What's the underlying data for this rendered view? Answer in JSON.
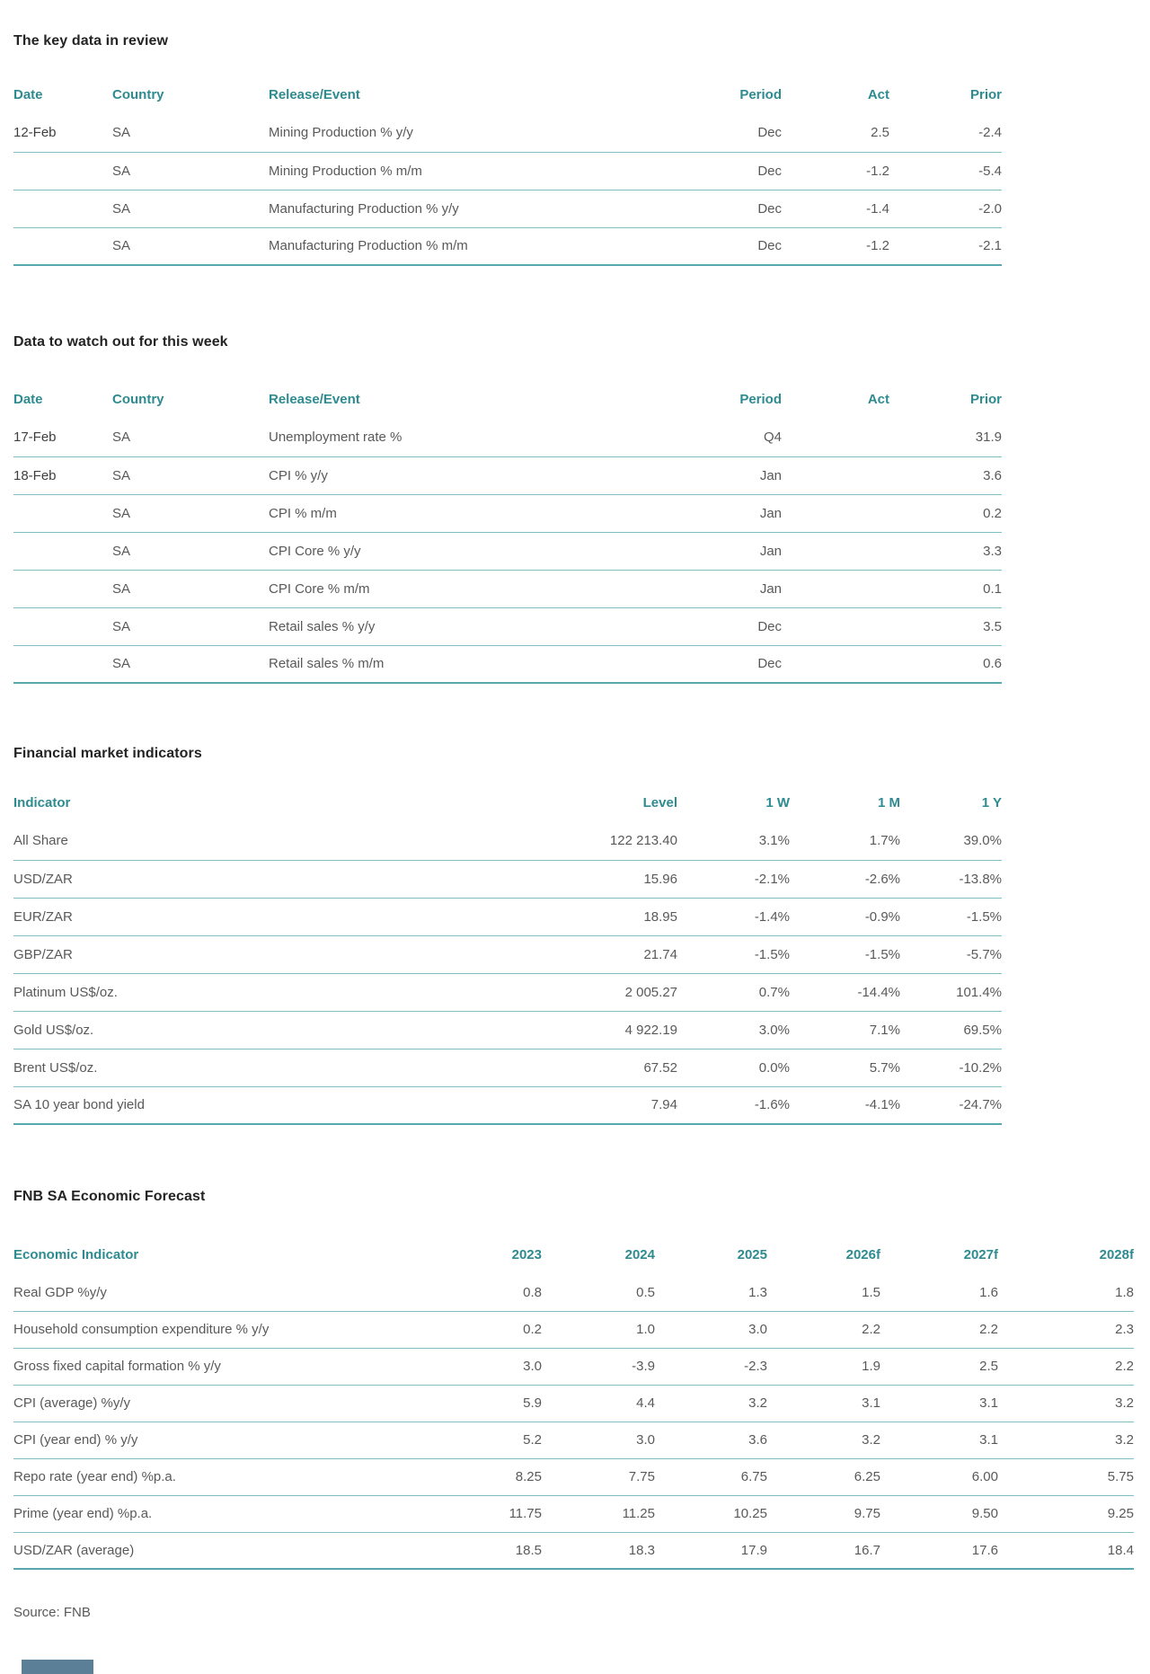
{
  "sections": {
    "key_data": {
      "title": "The key data in review",
      "columns": [
        "Date",
        "Country",
        "Release/Event",
        "Period",
        "Act",
        "Prior"
      ],
      "rows": [
        [
          "12-Feb",
          "SA",
          "Mining Production % y/y",
          "Dec",
          "2.5",
          "-2.4"
        ],
        [
          "",
          "SA",
          "Mining Production % m/m",
          "Dec",
          "-1.2",
          "-5.4"
        ],
        [
          "",
          "SA",
          "Manufacturing Production % y/y",
          "Dec",
          "-1.4",
          "-2.0"
        ],
        [
          "",
          "SA",
          "Manufacturing Production % m/m",
          "Dec",
          "-1.2",
          "-2.1"
        ]
      ]
    },
    "watch": {
      "title": "Data to watch out for this week",
      "columns": [
        "Date",
        "Country",
        "Release/Event",
        "Period",
        "Act",
        "Prior"
      ],
      "rows": [
        [
          "17-Feb",
          "SA",
          "Unemployment rate %",
          "Q4",
          "",
          "31.9"
        ],
        [
          "18-Feb",
          "SA",
          "CPI % y/y",
          "Jan",
          "",
          "3.6"
        ],
        [
          "",
          "SA",
          "CPI % m/m",
          "Jan",
          "",
          "0.2"
        ],
        [
          "",
          "SA",
          "CPI Core % y/y",
          "Jan",
          "",
          "3.3"
        ],
        [
          "",
          "SA",
          "CPI Core % m/m",
          "Jan",
          "",
          "0.1"
        ],
        [
          "",
          "SA",
          "Retail sales % y/y",
          "Dec",
          "",
          "3.5"
        ],
        [
          "",
          "SA",
          "Retail sales % m/m",
          "Dec",
          "",
          "0.6"
        ]
      ]
    },
    "financial": {
      "title": "Financial market indicators",
      "columns": [
        "Indicator",
        "Level",
        "1 W",
        "1 M",
        "1 Y"
      ],
      "rows": [
        [
          "All Share",
          "122 213.40",
          "3.1%",
          "1.7%",
          "39.0%"
        ],
        [
          "USD/ZAR",
          "15.96",
          "-2.1%",
          "-2.6%",
          "-13.8%"
        ],
        [
          "EUR/ZAR",
          "18.95",
          "-1.4%",
          "-0.9%",
          "-1.5%"
        ],
        [
          "GBP/ZAR",
          "21.74",
          "-1.5%",
          "-1.5%",
          "-5.7%"
        ],
        [
          "Platinum US$/oz.",
          "2 005.27",
          "0.7%",
          "-14.4%",
          "101.4%"
        ],
        [
          "Gold US$/oz.",
          "4 922.19",
          "3.0%",
          "7.1%",
          "69.5%"
        ],
        [
          "Brent US$/oz.",
          "67.52",
          "0.0%",
          "5.7%",
          "-10.2%"
        ],
        [
          "SA 10 year bond yield",
          "7.94",
          "-1.6%",
          "-4.1%",
          "-24.7%"
        ]
      ]
    },
    "forecast": {
      "title": "FNB SA Economic Forecast",
      "columns": [
        "Economic Indicator",
        "2023",
        "2024",
        "2025",
        "2026f",
        "2027f",
        "2028f"
      ],
      "rows": [
        [
          "Real GDP %y/y",
          "0.8",
          "0.5",
          "1.3",
          "1.5",
          "1.6",
          "1.8"
        ],
        [
          "Household consumption expenditure % y/y",
          "0.2",
          "1.0",
          "3.0",
          "2.2",
          "2.2",
          "2.3"
        ],
        [
          "Gross fixed capital formation % y/y",
          "3.0",
          "-3.9",
          "-2.3",
          "1.9",
          "2.5",
          "2.2"
        ],
        [
          "CPI (average) %y/y",
          "5.9",
          "4.4",
          "3.2",
          "3.1",
          "3.1",
          "3.2"
        ],
        [
          "CPI (year end) % y/y",
          "5.2",
          "3.0",
          "3.6",
          "3.2",
          "3.1",
          "3.2"
        ],
        [
          "Repo rate (year end) %p.a.",
          "8.25",
          "7.75",
          "6.75",
          "6.25",
          "6.00",
          "5.75"
        ],
        [
          "Prime (year end) %p.a.",
          "11.75",
          "11.25",
          "10.25",
          "9.75",
          "9.50",
          "9.25"
        ],
        [
          "USD/ZAR (average)",
          "18.5",
          "18.3",
          "17.9",
          "16.7",
          "17.6",
          "18.4"
        ]
      ]
    },
    "source": "Source: FNB"
  },
  "colors": {
    "accent_teal": "#2E8B90",
    "row_border": "#7FBEC3",
    "table_end_border": "#58A9AE",
    "title_text": "#242424",
    "cell_text": "#595959",
    "date_text": "#3F3F3F",
    "footer_bar": "#5B7F96"
  }
}
